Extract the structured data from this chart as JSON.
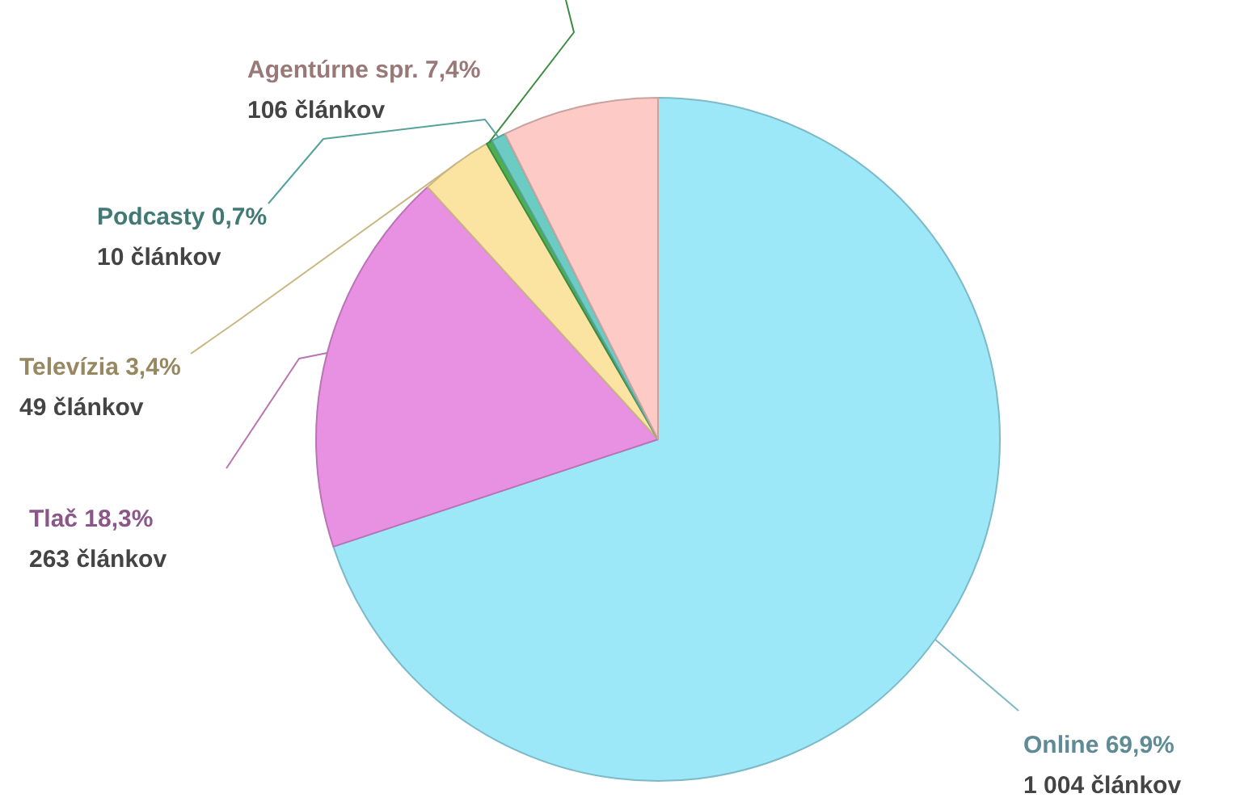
{
  "chart_data": {
    "type": "pie",
    "categories": [
      "Online",
      "Tlač",
      "Televízia",
      null,
      "Podcasty",
      "Agentúrne spr."
    ],
    "values": [
      1004,
      263,
      49,
      4,
      10,
      106
    ],
    "colors": [
      "#9ce7f8",
      "#e891e2",
      "#fbe3a2",
      "#4caf50",
      "#6ccbc3",
      "#fdcac6"
    ],
    "value_labels": [
      "69,9%\n1 004 článkov",
      "18,3%\n263 článkov",
      "3,4%\n49 článkov",
      null,
      "0,7%\n10 článkov",
      "7,4%\n106 článkov"
    ],
    "legend": false
  }
}
